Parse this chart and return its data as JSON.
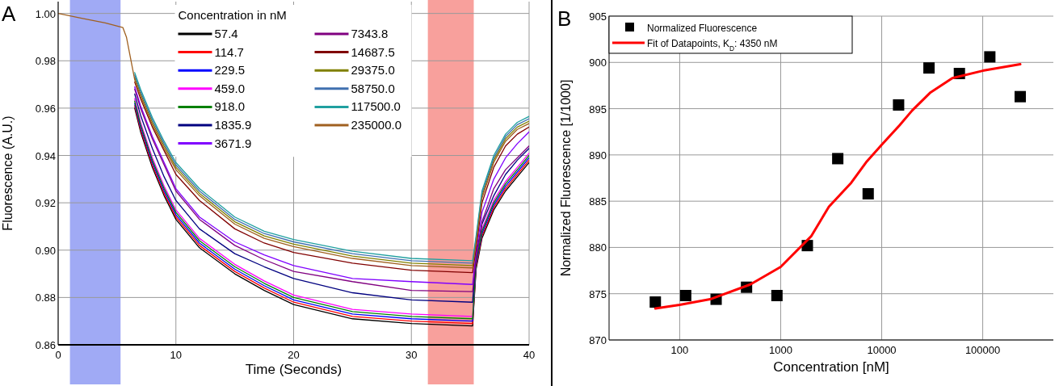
{
  "chart_data": [
    {
      "type": "line",
      "xlabel": "Time (Seconds)",
      "ylabel": "Fluorescence (A.U.)",
      "legend_title": "Concentration in nM",
      "annotations": [
        "A"
      ],
      "x": [
        0,
        2,
        4,
        5.5,
        5.8,
        6.5,
        7,
        8,
        9,
        10,
        12,
        15,
        17.5,
        20,
        25,
        30,
        35.2,
        35.5,
        36,
        37,
        38,
        39,
        40
      ],
      "xlim": [
        0,
        40
      ],
      "xticks": [
        0,
        10,
        20,
        30,
        40
      ],
      "ylim": [
        0.86,
        1.005
      ],
      "yticks": [
        {
          "value": 0.86,
          "label": "0.86"
        },
        {
          "value": 0.88,
          "label": "0.88"
        },
        {
          "value": 0.9,
          "label": "0.90"
        },
        {
          "value": 0.92,
          "label": "0.92"
        },
        {
          "value": 0.94,
          "label": "0.94"
        },
        {
          "value": 0.96,
          "label": "0.96"
        },
        {
          "value": 0.98,
          "label": "0.98"
        },
        {
          "value": 1.0,
          "label": "1.00"
        }
      ],
      "grid": true,
      "legend": "top",
      "bands": [
        {
          "axis": "x",
          "from": 1.0,
          "to": 5.3,
          "color": "#a0aaf5"
        },
        {
          "axis": "x",
          "from": 31.4,
          "to": 35.3,
          "color": "#f8a09c"
        }
      ],
      "series": [
        {
          "name": "57.4",
          "color": "#000000",
          "values": [
            null,
            null,
            null,
            null,
            null,
            0.96,
            0.95,
            0.935,
            0.923,
            0.913,
            0.901,
            0.89,
            0.883,
            0.877,
            0.871,
            0.869,
            0.868,
            0.892,
            0.905,
            0.917,
            0.925,
            0.931,
            0.937
          ]
        },
        {
          "name": "114.7",
          "color": "#ff0000",
          "values": [
            null,
            null,
            null,
            null,
            null,
            0.961,
            0.951,
            0.936,
            0.924,
            0.914,
            0.902,
            0.891,
            0.884,
            0.878,
            0.872,
            0.87,
            0.869,
            0.893,
            0.906,
            0.918,
            0.926,
            0.932,
            0.938
          ]
        },
        {
          "name": "229.5",
          "color": "#0000ff",
          "values": [
            null,
            null,
            null,
            null,
            null,
            0.962,
            0.952,
            0.937,
            0.925,
            0.915,
            0.903,
            0.892,
            0.885,
            0.879,
            0.873,
            0.871,
            0.87,
            0.894,
            0.907,
            0.919,
            0.927,
            0.933,
            0.939
          ]
        },
        {
          "name": "459.0",
          "color": "#ff00ff",
          "values": [
            null,
            null,
            null,
            null,
            null,
            0.964,
            0.954,
            0.939,
            0.927,
            0.917,
            0.905,
            0.894,
            0.887,
            0.881,
            0.875,
            0.873,
            0.872,
            0.896,
            0.909,
            0.921,
            0.929,
            0.935,
            0.941
          ]
        },
        {
          "name": "918.0",
          "color": "#008000",
          "values": [
            null,
            null,
            null,
            null,
            null,
            0.963,
            0.953,
            0.938,
            0.926,
            0.916,
            0.904,
            0.893,
            0.886,
            0.88,
            0.874,
            0.872,
            0.871,
            0.895,
            0.908,
            0.92,
            0.928,
            0.934,
            0.94
          ]
        },
        {
          "name": "1835.9",
          "color": "#000080",
          "values": [
            null,
            null,
            null,
            null,
            null,
            0.966,
            0.957,
            0.943,
            0.931,
            0.921,
            0.909,
            0.8985,
            0.893,
            0.888,
            0.882,
            0.879,
            0.878,
            0.898,
            0.911,
            0.923,
            0.932,
            0.938,
            0.943
          ]
        },
        {
          "name": "3671.9",
          "color": "#8000ff",
          "values": [
            null,
            null,
            null,
            null,
            null,
            0.969,
            0.961,
            0.948,
            0.937,
            0.926,
            0.914,
            0.9035,
            0.898,
            0.8935,
            0.888,
            0.8867,
            0.8855,
            0.899,
            0.916,
            0.93,
            0.939,
            0.945,
            0.95
          ]
        },
        {
          "name": "7343.8",
          "color": "#800080",
          "values": [
            null,
            null,
            null,
            null,
            null,
            0.968,
            0.96,
            0.947,
            0.936,
            0.925,
            0.913,
            0.902,
            0.896,
            0.891,
            0.8867,
            0.883,
            0.8825,
            0.896,
            0.912,
            0.926,
            0.934,
            0.939,
            0.944
          ]
        },
        {
          "name": "14687.5",
          "color": "#800000",
          "values": [
            null,
            null,
            null,
            null,
            null,
            0.971,
            0.964,
            0.952,
            0.942,
            0.932,
            0.921,
            0.909,
            0.903,
            0.899,
            0.8945,
            0.8915,
            0.8905,
            0.901,
            0.92,
            0.935,
            0.944,
            0.949,
            0.952
          ]
        },
        {
          "name": "29375.0",
          "color": "#808000",
          "values": [
            null,
            null,
            null,
            null,
            null,
            0.973,
            0.966,
            0.954,
            0.944,
            0.935,
            0.924,
            0.912,
            0.906,
            0.9025,
            0.8975,
            0.8945,
            0.8935,
            0.904,
            0.923,
            0.938,
            0.947,
            0.952,
            0.9545
          ]
        },
        {
          "name": "58750.0",
          "color": "#4070b0",
          "values": [
            null,
            null,
            null,
            null,
            null,
            0.974,
            0.967,
            0.955,
            0.945,
            0.936,
            0.925,
            0.913,
            0.907,
            0.9035,
            0.8985,
            0.8955,
            0.8945,
            0.905,
            0.924,
            0.939,
            0.948,
            0.953,
            0.9555
          ]
        },
        {
          "name": "117500.0",
          "color": "#20a0a0",
          "values": [
            null,
            null,
            null,
            null,
            null,
            0.975,
            0.968,
            0.956,
            0.946,
            0.937,
            0.926,
            0.914,
            0.908,
            0.9045,
            0.8995,
            0.8965,
            0.8955,
            0.906,
            0.925,
            0.94,
            0.949,
            0.954,
            0.9565
          ]
        },
        {
          "name": "235000.0",
          "color": "#a06020",
          "values": [
            1.0,
            0.998,
            0.996,
            0.994,
            0.99,
            0.972,
            0.965,
            0.953,
            0.943,
            0.934,
            0.923,
            0.911,
            0.905,
            0.9015,
            0.8965,
            0.8935,
            0.8925,
            0.903,
            0.922,
            0.937,
            0.946,
            0.951,
            0.9535
          ]
        }
      ]
    },
    {
      "type": "scatter",
      "xlabel": "Concentration [nM]",
      "ylabel": "Normalized Fluorescence [1/1000]",
      "annotations": [
        "B"
      ],
      "x": [
        57.4,
        114.7,
        229.5,
        459.0,
        918.0,
        1835.9,
        3671.9,
        7343.8,
        14687.5,
        29375.0,
        58750.0,
        117500.0,
        235000.0
      ],
      "log": "x",
      "xlim": [
        20,
        500000
      ],
      "xticks": [
        100,
        1000,
        10000,
        100000
      ],
      "ylim": [
        870,
        905
      ],
      "yticks": [
        870,
        875,
        880,
        885,
        890,
        895,
        900,
        905
      ],
      "grid": true,
      "legend": "top left",
      "series": [
        {
          "name": "Normalized Fluorescence",
          "color": "#000000",
          "marker": "square",
          "values": [
            874.1,
            874.8,
            874.4,
            875.7,
            874.8,
            880.2,
            889.6,
            885.8,
            895.4,
            899.4,
            898.8,
            900.6,
            896.3
          ]
        },
        {
          "name": "Fit of Datapoints, K$_{D}$: 4350 nM",
          "type": "line",
          "color": "#ff0000",
          "x": [
            57.4,
            100,
            200,
            500,
            1000,
            2000,
            3000,
            5000,
            7000,
            10000,
            15000,
            20000,
            30000,
            50000,
            100000,
            235000
          ],
          "values": [
            873.4,
            873.8,
            874.4,
            876.0,
            877.9,
            881.2,
            884.4,
            887.0,
            889.2,
            891.1,
            893.2,
            894.8,
            896.7,
            898.3,
            899.1,
            899.8
          ]
        }
      ]
    }
  ]
}
